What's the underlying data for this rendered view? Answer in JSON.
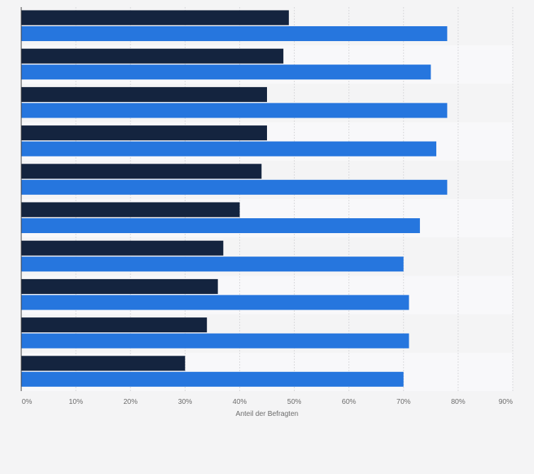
{
  "chart_data": {
    "type": "bar",
    "orientation": "horizontal",
    "categories": [
      "",
      "",
      "",
      "",
      "",
      "",
      "",
      "",
      "",
      ""
    ],
    "series": [
      {
        "values": [
          49,
          48,
          45,
          45,
          44,
          40,
          37,
          36,
          34,
          30
        ],
        "color": "#14243f"
      },
      {
        "values": [
          78,
          75,
          78,
          76,
          78,
          73,
          70,
          71,
          71,
          70
        ],
        "color": "#2676de"
      }
    ],
    "xlim": [
      0,
      90
    ],
    "xticks": [
      0,
      10,
      20,
      30,
      40,
      50,
      60,
      70,
      80,
      90
    ],
    "tick_labels": [
      "0%",
      "10%",
      "20%",
      "30%",
      "40%",
      "50%",
      "60%",
      "70%",
      "80%",
      "90%"
    ],
    "xlabel": "Anteil der Befragten",
    "grid": true,
    "legend": "none",
    "band_colors": [
      "#f4f4f5",
      "#f8f8fa"
    ]
  }
}
